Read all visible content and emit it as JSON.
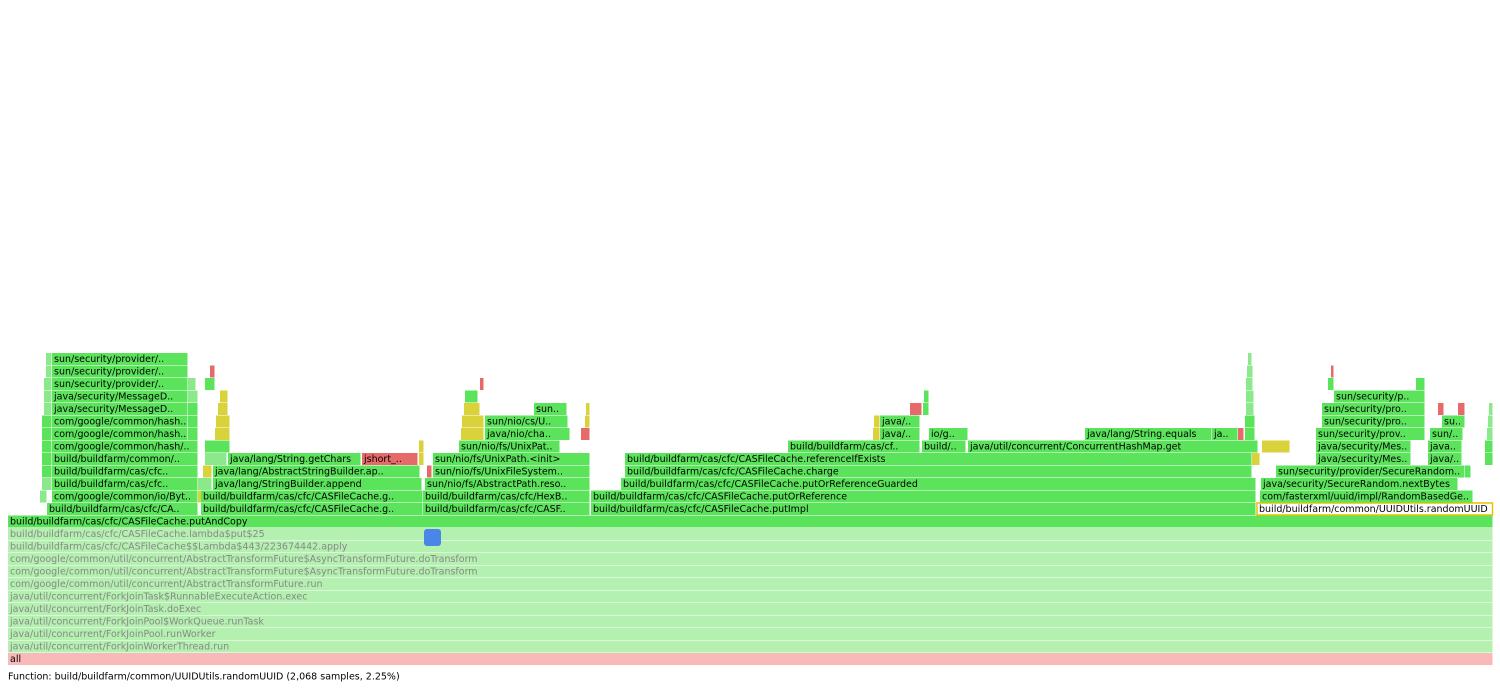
{
  "frames": [
    "all",
    "java/util/concurrent/ForkJoinWorkerThread.run",
    "java/util/concurrent/ForkJoinPool.runWorker",
    "java/util/concurrent/ForkJoinPool$WorkQueue.runTask",
    "java/util/concurrent/ForkJoinTask.doExec",
    "java/util/concurrent/ForkJoinTask$RunnableExecuteAction.exec",
    "com/google/common/util/concurrent/AbstractTransformFuture.run",
    "com/google/common/util/concurrent/AbstractTransformFuture$AsyncTransformFuture.doTransform",
    "com/google/common/util/concurrent/AbstractTransformFuture$AsyncTransformFuture.doTransform",
    "build/buildfarm/cas/cfc/CASFileCache$$Lambda$443/223674442.apply",
    "build/buildfarm/cas/cfc/CASFileCache.lambda$put$25",
    "build/buildfarm/cas/cfc/CASFileCache.putAndCopy",
    "build/buildfarm/cas/cfc/CA..",
    "build/buildfarm/cas/cfc/CASFileCache.g..",
    "build/buildfarm/cas/cfc/CASF..",
    "build/buildfarm/cas/cfc/CASFileCache.putImpl",
    "build/buildfarm/common/UUIDUtils.randomUUID",
    "com/google/common/io/Byt..",
    "build/buildfarm/cas/cfc/CASFileCache.g..",
    "build/buildfarm/cas/cfc/HexB..",
    "build/buildfarm/cas/cfc/CASFileCache.putOrReference",
    "com/fasterxml/uuid/impl/RandomBasedGe..",
    "build/buildfarm/cas/cfc..",
    "java/lang/StringBuilder.append",
    "sun/nio/fs/AbstractPath.reso..",
    "build/buildfarm/cas/cfc/CASFileCache.putOrReferenceGuarded",
    "java/security/SecureRandom.nextBytes",
    "build/buildfarm/cas/cfc..",
    "java/lang/AbstractStringBuilder.ap..",
    "sun/nio/fs/UnixFileSystem..",
    "build/buildfarm/cas/cfc/CASFileCache.charge",
    "sun/security/provider/SecureRandom..",
    "build/buildfarm/common/..",
    "java/lang/String.getChars",
    "jshort_..",
    "sun/nio/fs/UnixPath.<init>",
    "build/buildfarm/cas/cfc/CASFileCache.referenceIfExists",
    "java/security/Mes..",
    "java/..",
    "com/google/common/hash/..",
    "sun/nio/fs/UnixPat..",
    "build/buildfarm/cas/cf..",
    "build/..",
    "java/util/concurrent/ConcurrentHashMap.get",
    "java/security/Mes..",
    "java..",
    "com/google/common/hash..",
    "java/nio/cha..",
    "java/..",
    "io/g..",
    "java/lang/String.equals",
    "ja..",
    "sun/security/prov..",
    "sun/..",
    "com/google/common/hash..",
    "sun/nio/cs/U..",
    "java/..",
    "sun/security/pro..",
    "su..",
    "java/security/MessageD..",
    "sun..",
    "sun/security/pro..",
    "java/security/MessageD..",
    "sun/security/p..",
    "sun/security/provider/..",
    "sun/security/provider/..",
    "sun/security/provider/.."
  ],
  "footer": "Function: build/buildfarm/common/UUIDUtils.randomUUID (2,068 samples, 2.25%)"
}
